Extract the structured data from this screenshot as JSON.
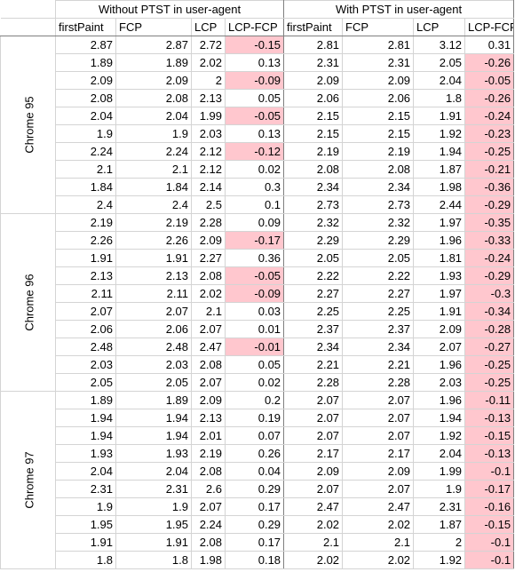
{
  "header": {
    "without_title": "Without PTST in user-agent",
    "with_title": "With PTST in user-agent",
    "columns": [
      "firstPaint",
      "FCP",
      "LCP",
      "LCP-FCP",
      "firstPaint",
      "FCP",
      "LCP",
      "LCP-FCP"
    ]
  },
  "colors": {
    "negative_highlight": "#ffc7ce",
    "grid": "#d4d4d4",
    "group_border": "#7f7f7f"
  },
  "groups": [
    {
      "label": "Chrome 95",
      "rows": [
        [
          "2.87",
          "2.87",
          "2.72",
          "-0.15",
          "2.81",
          "2.81",
          "3.12",
          "0.31"
        ],
        [
          "1.89",
          "1.89",
          "2.02",
          "0.13",
          "2.31",
          "2.31",
          "2.05",
          "-0.26"
        ],
        [
          "2.09",
          "2.09",
          "2",
          "-0.09",
          "2.09",
          "2.09",
          "2.04",
          "-0.05"
        ],
        [
          "2.08",
          "2.08",
          "2.13",
          "0.05",
          "2.06",
          "2.06",
          "1.8",
          "-0.26"
        ],
        [
          "2.04",
          "2.04",
          "1.99",
          "-0.05",
          "2.15",
          "2.15",
          "1.91",
          "-0.24"
        ],
        [
          "1.9",
          "1.9",
          "2.03",
          "0.13",
          "2.15",
          "2.15",
          "1.92",
          "-0.23"
        ],
        [
          "2.24",
          "2.24",
          "2.12",
          "-0.12",
          "2.19",
          "2.19",
          "1.94",
          "-0.25"
        ],
        [
          "2.1",
          "2.1",
          "2.12",
          "0.02",
          "2.08",
          "2.08",
          "1.87",
          "-0.21"
        ],
        [
          "1.84",
          "1.84",
          "2.14",
          "0.3",
          "2.34",
          "2.34",
          "1.98",
          "-0.36"
        ],
        [
          "2.4",
          "2.4",
          "2.5",
          "0.1",
          "2.73",
          "2.73",
          "2.44",
          "-0.29"
        ]
      ]
    },
    {
      "label": "Chrome 96",
      "rows": [
        [
          "2.19",
          "2.19",
          "2.28",
          "0.09",
          "2.32",
          "2.32",
          "1.97",
          "-0.35"
        ],
        [
          "2.26",
          "2.26",
          "2.09",
          "-0.17",
          "2.29",
          "2.29",
          "1.96",
          "-0.33"
        ],
        [
          "1.91",
          "1.91",
          "2.27",
          "0.36",
          "2.05",
          "2.05",
          "1.81",
          "-0.24"
        ],
        [
          "2.13",
          "2.13",
          "2.08",
          "-0.05",
          "2.22",
          "2.22",
          "1.93",
          "-0.29"
        ],
        [
          "2.11",
          "2.11",
          "2.02",
          "-0.09",
          "2.27",
          "2.27",
          "1.97",
          "-0.3"
        ],
        [
          "2.07",
          "2.07",
          "2.1",
          "0.03",
          "2.25",
          "2.25",
          "1.91",
          "-0.34"
        ],
        [
          "2.06",
          "2.06",
          "2.07",
          "0.01",
          "2.37",
          "2.37",
          "2.09",
          "-0.28"
        ],
        [
          "2.48",
          "2.48",
          "2.47",
          "-0.01",
          "2.34",
          "2.34",
          "2.07",
          "-0.27"
        ],
        [
          "2.03",
          "2.03",
          "2.08",
          "0.05",
          "2.21",
          "2.21",
          "1.96",
          "-0.25"
        ],
        [
          "2.05",
          "2.05",
          "2.07",
          "0.02",
          "2.28",
          "2.28",
          "2.03",
          "-0.25"
        ]
      ]
    },
    {
      "label": "Chrome 97",
      "rows": [
        [
          "1.89",
          "1.89",
          "2.09",
          "0.2",
          "2.07",
          "2.07",
          "1.96",
          "-0.11"
        ],
        [
          "1.94",
          "1.94",
          "2.13",
          "0.19",
          "2.07",
          "2.07",
          "1.94",
          "-0.13"
        ],
        [
          "1.94",
          "1.94",
          "2.01",
          "0.07",
          "2.07",
          "2.07",
          "1.92",
          "-0.15"
        ],
        [
          "1.93",
          "1.93",
          "2.19",
          "0.26",
          "2.17",
          "2.17",
          "2.04",
          "-0.13"
        ],
        [
          "2.04",
          "2.04",
          "2.08",
          "0.04",
          "2.09",
          "2.09",
          "1.99",
          "-0.1"
        ],
        [
          "2.31",
          "2.31",
          "2.6",
          "0.29",
          "2.07",
          "2.07",
          "1.9",
          "-0.17"
        ],
        [
          "1.9",
          "1.9",
          "2.07",
          "0.17",
          "2.47",
          "2.47",
          "2.31",
          "-0.16"
        ],
        [
          "1.95",
          "1.95",
          "2.24",
          "0.29",
          "2.02",
          "2.02",
          "1.87",
          "-0.15"
        ],
        [
          "1.91",
          "1.91",
          "2.08",
          "0.17",
          "2.1",
          "2.1",
          "2",
          "-0.1"
        ],
        [
          "1.8",
          "1.8",
          "1.98",
          "0.18",
          "2.02",
          "2.02",
          "1.92",
          "-0.1"
        ]
      ]
    }
  ]
}
